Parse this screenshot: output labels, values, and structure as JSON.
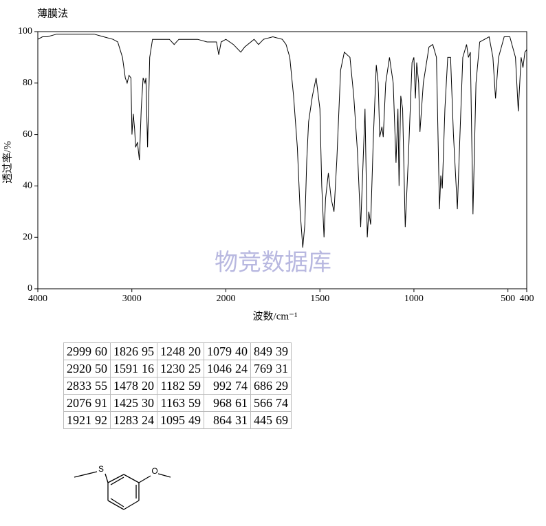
{
  "chart_data": {
    "type": "line",
    "title": "薄膜法",
    "xlabel": "波数/cm⁻¹",
    "ylabel": "透过率/%",
    "watermark": "物竞数据库",
    "color": "#000000",
    "xlim": [
      4000,
      400
    ],
    "xticks": [
      4000,
      3000,
      2000,
      1500,
      1000,
      500,
      400
    ],
    "xscale": {
      "type": "piecewise",
      "break": 2000,
      "factor": 2
    },
    "ylim": [
      0,
      100
    ],
    "yticks": [
      0,
      20,
      40,
      60,
      80,
      100
    ],
    "x": [
      4000,
      3950,
      3900,
      3800,
      3700,
      3600,
      3500,
      3400,
      3300,
      3200,
      3150,
      3100,
      3070,
      3050,
      3030,
      3010,
      2999,
      2985,
      2970,
      2960,
      2940,
      2920,
      2900,
      2880,
      2860,
      2850,
      2833,
      2810,
      2780,
      2700,
      2600,
      2550,
      2500,
      2400,
      2300,
      2200,
      2100,
      2076,
      2050,
      2000,
      1960,
      1921,
      1900,
      1850,
      1826,
      1800,
      1750,
      1700,
      1680,
      1660,
      1640,
      1620,
      1605,
      1591,
      1580,
      1570,
      1560,
      1540,
      1520,
      1500,
      1490,
      1478,
      1470,
      1455,
      1440,
      1425,
      1410,
      1390,
      1370,
      1340,
      1320,
      1300,
      1283,
      1270,
      1260,
      1248,
      1240,
      1230,
      1215,
      1200,
      1190,
      1182,
      1170,
      1163,
      1150,
      1130,
      1110,
      1095,
      1085,
      1079,
      1070,
      1060,
      1046,
      1030,
      1010,
      1000,
      992,
      985,
      975,
      968,
      950,
      920,
      900,
      880,
      864,
      857,
      849,
      835,
      820,
      805,
      790,
      769,
      755,
      740,
      720,
      710,
      700,
      686,
      670,
      650,
      600,
      580,
      566,
      550,
      520,
      490,
      460,
      445,
      430,
      420,
      410,
      400
    ],
    "values": [
      97,
      98,
      98,
      99,
      99,
      99,
      99,
      99,
      98,
      97,
      96,
      90,
      82,
      80,
      83,
      82,
      60,
      68,
      62,
      55,
      57,
      50,
      70,
      82,
      80,
      82,
      55,
      90,
      97,
      97,
      97,
      95,
      97,
      97,
      97,
      96,
      96,
      91,
      96,
      97,
      95,
      92,
      94,
      97,
      95,
      97,
      98,
      97,
      95,
      90,
      75,
      55,
      30,
      16,
      25,
      50,
      65,
      75,
      82,
      70,
      40,
      20,
      35,
      45,
      35,
      30,
      50,
      85,
      92,
      90,
      75,
      53,
      24,
      50,
      70,
      20,
      30,
      25,
      60,
      87,
      80,
      59,
      63,
      59,
      80,
      90,
      80,
      49,
      70,
      40,
      75,
      70,
      24,
      50,
      88,
      90,
      74,
      88,
      80,
      61,
      80,
      94,
      95,
      90,
      31,
      44,
      39,
      70,
      90,
      90,
      60,
      31,
      60,
      90,
      95,
      90,
      92,
      29,
      80,
      96,
      98,
      90,
      74,
      90,
      98,
      98,
      90,
      69,
      90,
      86,
      92,
      93
    ]
  },
  "table": {
    "columns": [
      [
        [
          2999,
          60
        ],
        [
          2920,
          50
        ],
        [
          2833,
          55
        ],
        [
          2076,
          91
        ],
        [
          1921,
          92
        ]
      ],
      [
        [
          1826,
          95
        ],
        [
          1591,
          16
        ],
        [
          1478,
          20
        ],
        [
          1425,
          30
        ],
        [
          1283,
          24
        ]
      ],
      [
        [
          1248,
          20
        ],
        [
          1230,
          25
        ],
        [
          1182,
          59
        ],
        [
          1163,
          59
        ],
        [
          1095,
          49
        ]
      ],
      [
        [
          1079,
          40
        ],
        [
          1046,
          24
        ],
        [
          992,
          74
        ],
        [
          968,
          61
        ],
        [
          864,
          31
        ]
      ],
      [
        [
          849,
          39
        ],
        [
          769,
          31
        ],
        [
          686,
          29
        ],
        [
          566,
          74
        ],
        [
          445,
          69
        ]
      ]
    ]
  },
  "structure": {
    "atoms": [
      "S",
      "O"
    ]
  }
}
